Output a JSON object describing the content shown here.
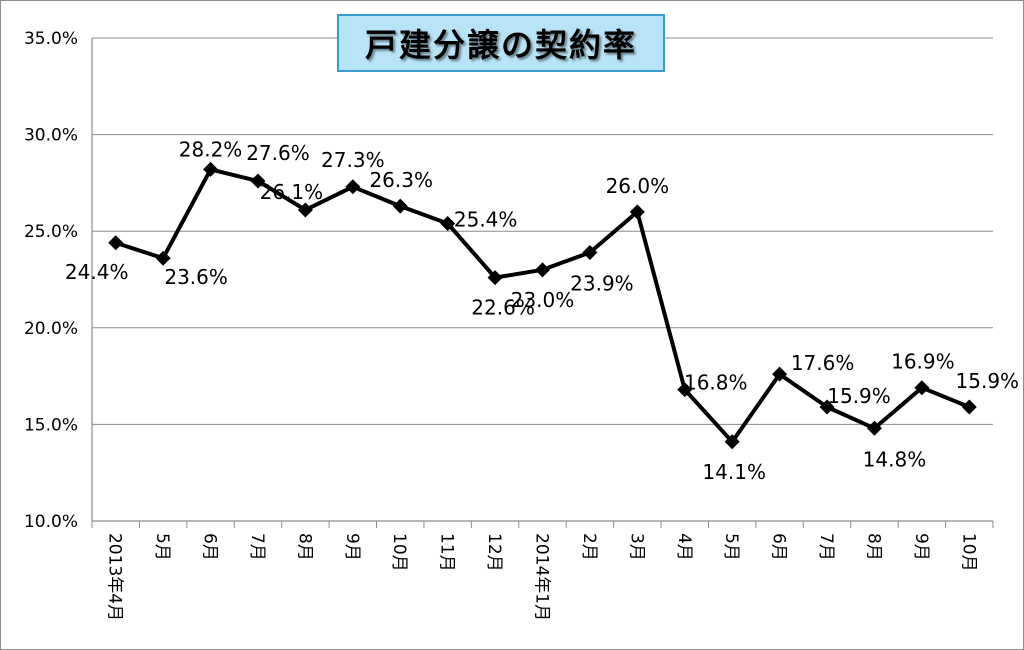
{
  "chart_data": {
    "type": "line",
    "title": "戸建分譲の契約率",
    "categories": [
      "2013年4月",
      "5月",
      "6月",
      "7月",
      "8月",
      "9月",
      "10月",
      "11月",
      "12月",
      "2014年1月",
      "2月",
      "3月",
      "4月",
      "5月",
      "6月",
      "7月",
      "8月",
      "9月",
      "10月"
    ],
    "values": [
      24.4,
      23.6,
      28.2,
      27.6,
      26.1,
      27.3,
      26.3,
      25.4,
      22.6,
      23.0,
      23.9,
      26.0,
      16.8,
      14.1,
      17.6,
      15.9,
      14.8,
      16.9,
      15.9
    ],
    "value_labels": [
      "24.4%",
      "23.6%",
      "28.2%",
      "27.6%",
      "26.1%",
      "27.3%",
      "26.3%",
      "25.4%",
      "22.6%",
      "23.0%",
      "23.9%",
      "26.0%",
      "16.8%",
      "14.1%",
      "17.6%",
      "15.9%",
      "14.8%",
      "16.9%",
      "15.9%"
    ],
    "y_ticks": [
      "10.0%",
      "15.0%",
      "20.0%",
      "25.0%",
      "30.0%",
      "35.0%"
    ],
    "ylim": [
      10,
      35
    ],
    "grid": true,
    "line_color": "#000000",
    "marker": "diamond",
    "title_bg": "#b8e4f7",
    "title_border": "#3a9bd0"
  }
}
